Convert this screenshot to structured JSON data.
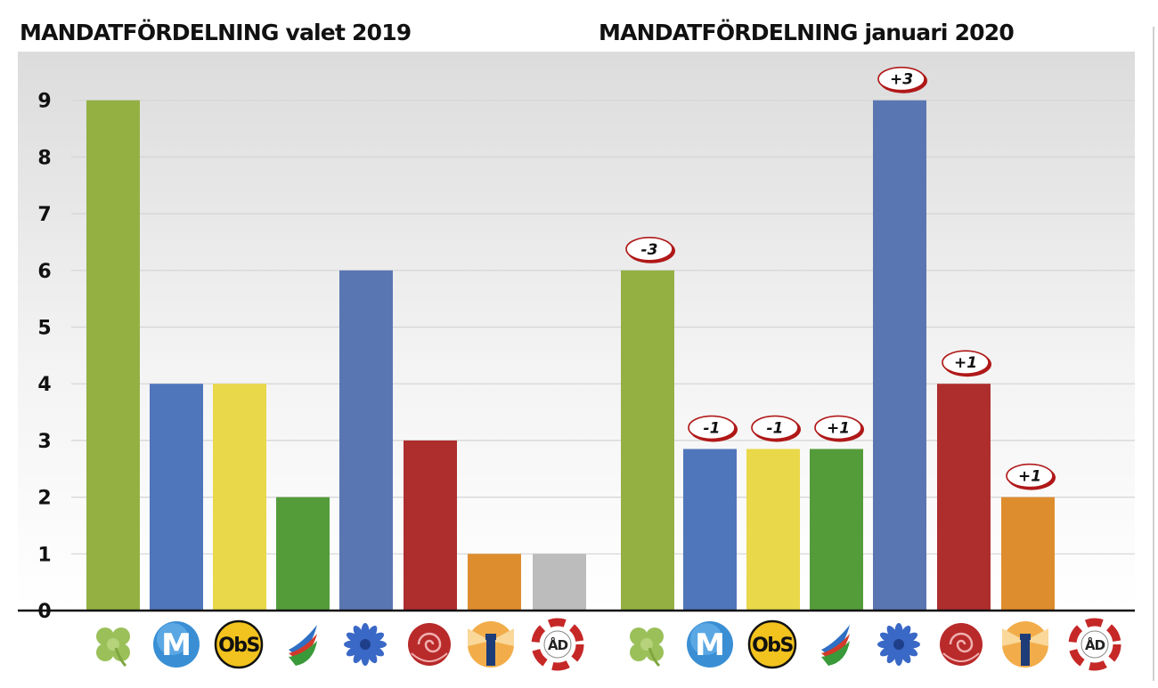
{
  "chart_data": [
    {
      "type": "bar",
      "title": "MANDATFÖRDELNING valet 2019",
      "ylim": [
        0,
        9
      ],
      "yticks": [
        0,
        1,
        2,
        3,
        4,
        5,
        6,
        7,
        8,
        9
      ],
      "grid": true,
      "categories": [
        "clover",
        "m",
        "obs",
        "flag",
        "cornflower",
        "rose",
        "lighthouse",
        "ad"
      ],
      "values": [
        9,
        4,
        4,
        2,
        6,
        3,
        1,
        1
      ],
      "colors": [
        "#94b043",
        "#4f76bb",
        "#e9d84a",
        "#549c3a",
        "#5a76b2",
        "#ae2e2e",
        "#de8d2e",
        "#bcbcbc"
      ]
    },
    {
      "type": "bar",
      "title": "MANDATFÖRDELNING januari 2020",
      "ylim": [
        0,
        9
      ],
      "grid": true,
      "categories": [
        "clover",
        "m",
        "obs",
        "flag",
        "cornflower",
        "rose",
        "lighthouse",
        "ad"
      ],
      "values": [
        6,
        2.85,
        2.85,
        2.85,
        9,
        4,
        2,
        0
      ],
      "changes": [
        "-3",
        "-1",
        "-1",
        "+1",
        "+3",
        "+1",
        "+1",
        ""
      ],
      "colors": [
        "#94b043",
        "#4f76bb",
        "#e9d84a",
        "#549c3a",
        "#5a76b2",
        "#ae2e2e",
        "#de8d2e",
        "#bcbcbc"
      ]
    }
  ],
  "logos": [
    {
      "icon": "clover-icon"
    },
    {
      "icon": "moderat-m-icon",
      "text": "M"
    },
    {
      "icon": "obs-icon",
      "text": "ObS"
    },
    {
      "icon": "flag-swoosh-icon"
    },
    {
      "icon": "cornflower-icon"
    },
    {
      "icon": "rose-icon"
    },
    {
      "icon": "lighthouse-icon"
    },
    {
      "icon": "lifebuoy-ad-icon",
      "text": "ÅD"
    }
  ]
}
